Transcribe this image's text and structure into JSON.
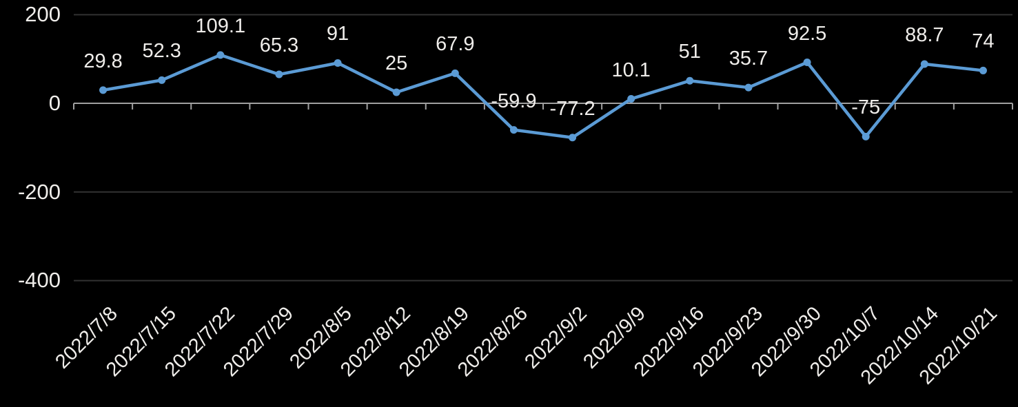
{
  "chart_data": {
    "type": "line",
    "title": "",
    "xlabel": "",
    "ylabel": "",
    "categories": [
      "2022/7/8",
      "2022/7/15",
      "2022/7/22",
      "2022/7/29",
      "2022/8/5",
      "2022/8/12",
      "2022/8/19",
      "2022/8/26",
      "2022/9/2",
      "2022/9/9",
      "2022/9/16",
      "2022/9/23",
      "2022/9/30",
      "2022/10/7",
      "2022/10/14",
      "2022/10/21"
    ],
    "values": [
      29.8,
      52.3,
      109.1,
      65.3,
      91,
      25,
      67.9,
      -59.9,
      -77.2,
      10.1,
      51,
      35.7,
      92.5,
      -75,
      88.7,
      74
    ],
    "data_labels": [
      "29.8",
      "52.3",
      "109.1",
      "65.3",
      "91",
      "25",
      "67.9",
      "-59.9",
      "-77.2",
      "10.1",
      "51",
      "35.7",
      "92.5",
      "-75",
      "88.7",
      "74"
    ],
    "ytick_labels": [
      "200",
      "0",
      "-200",
      "-400"
    ],
    "ytick_values": [
      200,
      0,
      -200,
      -400
    ],
    "ylim": [
      -400,
      200
    ],
    "grid": "horizontal",
    "legend": "none",
    "marker": "circle",
    "x_label_rotation_deg": -45
  },
  "colors": {
    "background": "#000000",
    "text": "#efedea",
    "gridline": "#323232",
    "axis": "#a0a0a0",
    "series": "#5b9bd5"
  }
}
